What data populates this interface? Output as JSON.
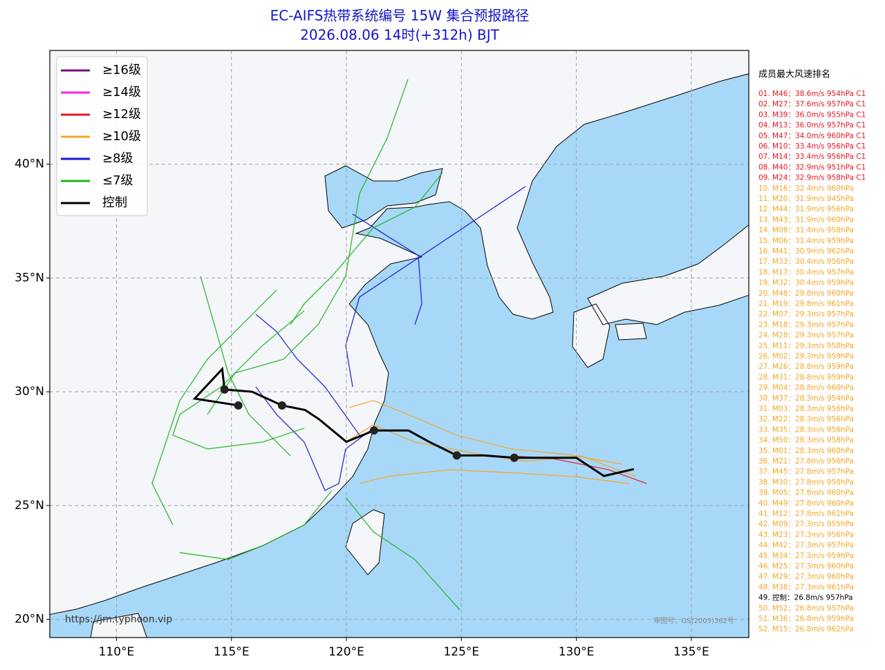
{
  "header": {
    "title": "EC-AIFS热带系统编号 15W 集合预报路径",
    "subtitle": "2026.08.06 14时(+312h) BJT"
  },
  "map": {
    "lonlim": [
      107.1,
      137.5
    ],
    "latlim": [
      19.2,
      45
    ],
    "lonticks": [
      {
        "value": 110,
        "label": "110°E"
      },
      {
        "value": 115,
        "label": "115°E"
      },
      {
        "value": 120,
        "label": "120°E"
      },
      {
        "value": 125,
        "label": "125°E"
      },
      {
        "value": 130,
        "label": "130°E"
      },
      {
        "value": 135,
        "label": "135°E"
      }
    ],
    "latticks": [
      {
        "value": 20,
        "label": "20°N"
      },
      {
        "value": 25,
        "label": "25°N"
      },
      {
        "value": 30,
        "label": "30°N"
      },
      {
        "value": 35,
        "label": "35°N"
      },
      {
        "value": 40,
        "label": "40°N"
      }
    ],
    "grid": true,
    "legend": [
      {
        "name": "≥16级",
        "color": "#7b0d7e"
      },
      {
        "name": "≥14级",
        "color": "#ff1ee6"
      },
      {
        "name": "≥12级",
        "color": "#e8141c"
      },
      {
        "name": "≥10级",
        "color": "#f5a623"
      },
      {
        "name": "≥8级",
        "color": "#1515d6"
      },
      {
        "name": "≤7级",
        "color": "#1db41d"
      },
      {
        "name": "控制",
        "color": "#000000"
      }
    ],
    "control_track": {
      "lon": [
        132.5,
        131.2,
        130.0,
        127.3,
        126.0,
        124.8,
        123.6,
        122.7,
        121.2,
        120.0,
        118.8,
        118.2,
        117.2,
        115.9,
        114.7,
        114.6,
        113.4,
        115.3
      ],
      "lat": [
        26.6,
        26.3,
        27.1,
        27.1,
        27.2,
        27.2,
        27.8,
        28.3,
        28.3,
        27.8,
        28.8,
        29.2,
        29.4,
        30.0,
        30.1,
        31.0,
        29.7,
        29.4
      ]
    },
    "control_positions": {
      "lon": [
        127.3,
        124.8,
        121.2,
        117.2,
        115.3,
        114.7
      ],
      "lat": [
        27.1,
        27.2,
        28.3,
        29.4,
        29.4,
        30.1
      ]
    },
    "source": "https://jm.typhoon.vip",
    "approval": "审图号：GS(2005)362号"
  },
  "ranking": {
    "title": "成员最大风速排名",
    "items": [
      {
        "text": "01. M46：38.6m/s 954hPa C1",
        "color": "#e8141c"
      },
      {
        "text": "02. M27：37.6m/s 957hPa C1",
        "color": "#e8141c"
      },
      {
        "text": "03. M39：36.0m/s 955hPa C1",
        "color": "#e8141c"
      },
      {
        "text": "04. M13：36.0m/s 957hPa C1",
        "color": "#e8141c"
      },
      {
        "text": "05. M47：34.0m/s 960hPa C1",
        "color": "#e8141c"
      },
      {
        "text": "06. M10：33.4m/s 956hPa C1",
        "color": "#e8141c"
      },
      {
        "text": "07. M14：33.4m/s 956hPa C1",
        "color": "#e8141c"
      },
      {
        "text": "08. M40：32.9m/s 951hPa C1",
        "color": "#e8141c"
      },
      {
        "text": "09. M24：32.9m/s 958hPa C1",
        "color": "#e8141c"
      },
      {
        "text": "10. M16：32.4m/s 960hPa",
        "color": "#f5a623"
      },
      {
        "text": "11. M20：31.9m/s 945hPa",
        "color": "#f5a623"
      },
      {
        "text": "12. M44：31.9m/s 956hPa",
        "color": "#f5a623"
      },
      {
        "text": "13. M43：31.9m/s 960hPa",
        "color": "#f5a623"
      },
      {
        "text": "14. M08：31.4m/s 958hPa",
        "color": "#f5a623"
      },
      {
        "text": "15. M06：31.4m/s 959hPa",
        "color": "#f5a623"
      },
      {
        "text": "16. M41：30.9m/s 962hPa",
        "color": "#f5a623"
      },
      {
        "text": "17. M33：30.4m/s 956hPa",
        "color": "#f5a623"
      },
      {
        "text": "18. M17：30.4m/s 957hPa",
        "color": "#f5a623"
      },
      {
        "text": "19. M32：30.4m/s 959hPa",
        "color": "#f5a623"
      },
      {
        "text": "20. M48：29.8m/s 960hPa",
        "color": "#f5a623"
      },
      {
        "text": "21. M19：29.8m/s 961hPa",
        "color": "#f5a623"
      },
      {
        "text": "22. M07：29.3m/s 957hPa",
        "color": "#f5a623"
      },
      {
        "text": "23. M18：29.3m/s 957hPa",
        "color": "#f5a623"
      },
      {
        "text": "24. M28：29.3m/s 957hPa",
        "color": "#f5a623"
      },
      {
        "text": "25. M11：29.3m/s 958hPa",
        "color": "#f5a623"
      },
      {
        "text": "26. M02：29.3m/s 959hPa",
        "color": "#f5a623"
      },
      {
        "text": "27. M26：28.8m/s 959hPa",
        "color": "#f5a623"
      },
      {
        "text": "28. M31：28.8m/s 959hPa",
        "color": "#f5a623"
      },
      {
        "text": "29. M04：28.8m/s 960hPa",
        "color": "#f5a623"
      },
      {
        "text": "30. M37：28.3m/s 954hPa",
        "color": "#f5a623"
      },
      {
        "text": "31. M03：28.3m/s 956hPa",
        "color": "#f5a623"
      },
      {
        "text": "32. M22：28.3m/s 956hPa",
        "color": "#f5a623"
      },
      {
        "text": "33. M35：28.3m/s 956hPa",
        "color": "#f5a623"
      },
      {
        "text": "34. M50：28.3m/s 958hPa",
        "color": "#f5a623"
      },
      {
        "text": "35. M01：28.3m/s 960hPa",
        "color": "#f5a623"
      },
      {
        "text": "36. M21：27.8m/s 956hPa",
        "color": "#f5a623"
      },
      {
        "text": "37. M45：27.8m/s 957hPa",
        "color": "#f5a623"
      },
      {
        "text": "38. M30：27.8m/s 958hPa",
        "color": "#f5a623"
      },
      {
        "text": "39. M05：27.8m/s 960hPa",
        "color": "#f5a623"
      },
      {
        "text": "40. M49：27.8m/s 960hPa",
        "color": "#f5a623"
      },
      {
        "text": "41. M12：27.8m/s 961hPa",
        "color": "#f5a623"
      },
      {
        "text": "42. M09：27.3m/s 955hPa",
        "color": "#f5a623"
      },
      {
        "text": "43. M23：27.3m/s 956hPa",
        "color": "#f5a623"
      },
      {
        "text": "44. M42：27.3m/s 957hPa",
        "color": "#f5a623"
      },
      {
        "text": "45. M34：27.3m/s 959hPa",
        "color": "#f5a623"
      },
      {
        "text": "46. M25：27.3m/s 960hPa",
        "color": "#f5a623"
      },
      {
        "text": "47. M29：27.3m/s 960hPa",
        "color": "#f5a623"
      },
      {
        "text": "48. M38：27.3m/s 961hPa",
        "color": "#f5a623"
      },
      {
        "text": "49. 控制：26.8m/s 957hPa",
        "color": "#000000"
      },
      {
        "text": "50. M52：26.8m/s 957hPa",
        "color": "#f5a623"
      },
      {
        "text": "51. M36：26.8m/s 959hPa",
        "color": "#f5a623"
      },
      {
        "text": "52. M15：26.8m/s 962hPa",
        "color": "#f5a623"
      }
    ]
  }
}
